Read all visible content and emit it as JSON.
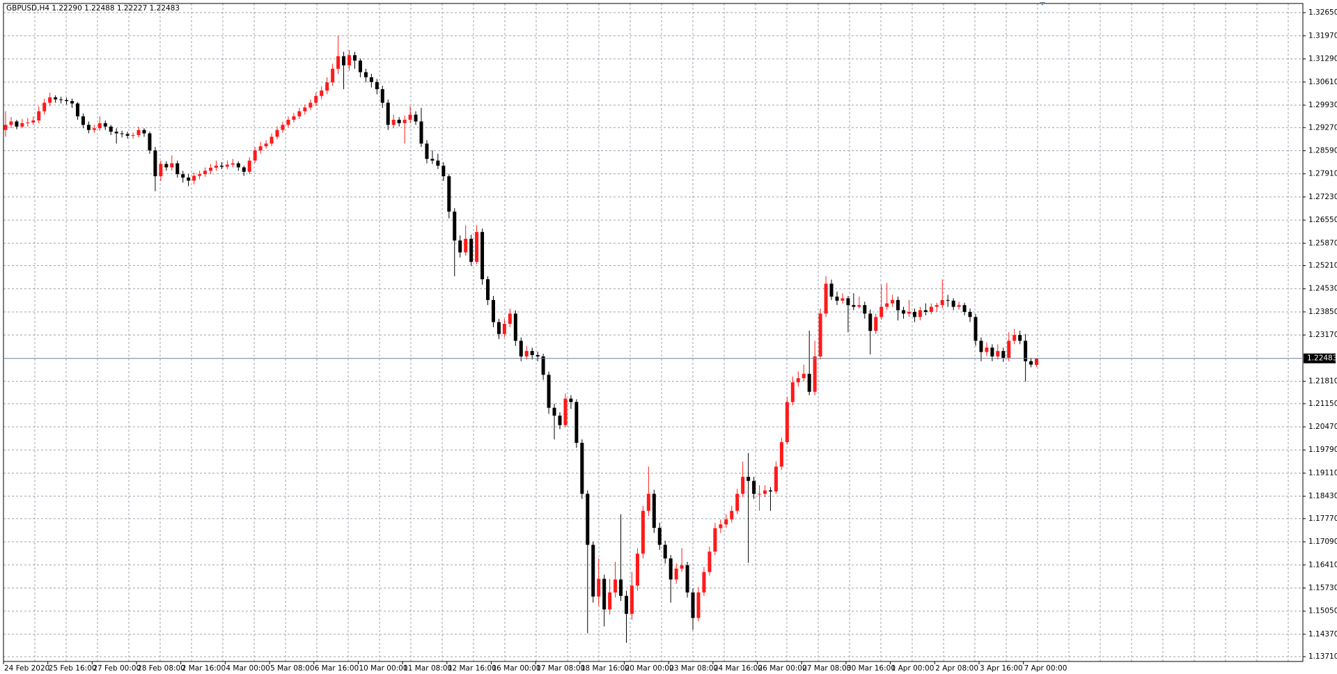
{
  "chart_data": {
    "type": "candlestick",
    "title": "GBPUSD,H4  1.22290 1.22488 1.22227 1.22483",
    "up_color": "#ff1a1a",
    "down_color": "#000000",
    "grid": true,
    "ylim": [
      1.1357,
      1.3292
    ],
    "yticks": [
      {
        "value": 1.3265,
        "label": "1.32650"
      },
      {
        "value": 1.3197,
        "label": "1.31970"
      },
      {
        "value": 1.3129,
        "label": "1.31290"
      },
      {
        "value": 1.3061,
        "label": "1.30610"
      },
      {
        "value": 1.2993,
        "label": "1.29930"
      },
      {
        "value": 1.2927,
        "label": "1.29270"
      },
      {
        "value": 1.2859,
        "label": "1.28590"
      },
      {
        "value": 1.2791,
        "label": "1.27910"
      },
      {
        "value": 1.2723,
        "label": "1.27230"
      },
      {
        "value": 1.2655,
        "label": "1.26550"
      },
      {
        "value": 1.2587,
        "label": "1.25870"
      },
      {
        "value": 1.2521,
        "label": "1.25210"
      },
      {
        "value": 1.2453,
        "label": "1.24530"
      },
      {
        "value": 1.2385,
        "label": "1.23850"
      },
      {
        "value": 1.2317,
        "label": "1.23170"
      },
      {
        "value": 1.2181,
        "label": "1.21810"
      },
      {
        "value": 1.2115,
        "label": "1.21150"
      },
      {
        "value": 1.2047,
        "label": "1.20470"
      },
      {
        "value": 1.1979,
        "label": "1.19790"
      },
      {
        "value": 1.1911,
        "label": "1.19110"
      },
      {
        "value": 1.1843,
        "label": "1.18430"
      },
      {
        "value": 1.1777,
        "label": "1.17770"
      },
      {
        "value": 1.1709,
        "label": "1.17090"
      },
      {
        "value": 1.1641,
        "label": "1.16410"
      },
      {
        "value": 1.1573,
        "label": "1.15730"
      },
      {
        "value": 1.1505,
        "label": "1.15050"
      },
      {
        "value": 1.1437,
        "label": "1.14370"
      },
      {
        "value": 1.1371,
        "label": "1.13710"
      }
    ],
    "current_price": {
      "value": 1.22483,
      "label": "1.22483"
    },
    "x_labels": [
      "24 Feb 2020",
      "25 Feb 16:00",
      "27 Feb 00:00",
      "28 Feb 08:00",
      "2 Mar 16:00",
      "4 Mar 00:00",
      "5 Mar 08:00",
      "6 Mar 16:00",
      "10 Mar 00:00",
      "11 Mar 08:00",
      "12 Mar 16:00",
      "16 Mar 00:00",
      "17 Mar 08:00",
      "18 Mar 16:00",
      "20 Mar 00:00",
      "23 Mar 08:00",
      "24 Mar 16:00",
      "26 Mar 00:00",
      "27 Mar 08:00",
      "30 Mar 16:00",
      "1 Apr 00:00",
      "2 Apr 08:00",
      "3 Apr 16:00",
      "7 Apr 00:00"
    ],
    "ohlc": [
      [
        1.292,
        1.2975,
        1.29,
        1.2935
      ],
      [
        1.2935,
        1.2958,
        1.2925,
        1.2945
      ],
      [
        1.2945,
        1.295,
        1.2922,
        1.293
      ],
      [
        1.293,
        1.2952,
        1.2925,
        1.294
      ],
      [
        1.294,
        1.2955,
        1.293,
        1.2942
      ],
      [
        1.2942,
        1.296,
        1.2935,
        1.2948
      ],
      [
        1.2948,
        1.299,
        1.294,
        1.2975
      ],
      [
        1.2975,
        1.3012,
        1.2965,
        1.3
      ],
      [
        1.3,
        1.303,
        1.299,
        1.3016
      ],
      [
        1.3016,
        1.3022,
        1.3,
        1.301
      ],
      [
        1.301,
        1.3018,
        1.2998,
        1.3008
      ],
      [
        1.3008,
        1.3015,
        1.2995,
        1.3005
      ],
      [
        1.3005,
        1.3012,
        1.2985,
        1.2998
      ],
      [
        1.2998,
        1.3002,
        1.295,
        1.296
      ],
      [
        1.296,
        1.2968,
        1.2925,
        1.2935
      ],
      [
        1.2935,
        1.2945,
        1.291,
        1.292
      ],
      [
        1.292,
        1.2935,
        1.2912,
        1.2925
      ],
      [
        1.2925,
        1.296,
        1.2918,
        1.294
      ],
      [
        1.294,
        1.2948,
        1.292,
        1.293
      ],
      [
        1.293,
        1.2935,
        1.2905,
        1.2915
      ],
      [
        1.2915,
        1.2925,
        1.288,
        1.291
      ],
      [
        1.291,
        1.2918,
        1.2898,
        1.2908
      ],
      [
        1.2908,
        1.2915,
        1.2895,
        1.2903
      ],
      [
        1.2903,
        1.2912,
        1.2895,
        1.2905
      ],
      [
        1.2905,
        1.293,
        1.2898,
        1.292
      ],
      [
        1.292,
        1.2925,
        1.29,
        1.291
      ],
      [
        1.291,
        1.2915,
        1.285,
        1.286
      ],
      [
        1.286,
        1.287,
        1.274,
        1.2784
      ],
      [
        1.2784,
        1.283,
        1.277,
        1.282
      ],
      [
        1.282,
        1.2828,
        1.28,
        1.281
      ],
      [
        1.281,
        1.2845,
        1.28,
        1.2822
      ],
      [
        1.2822,
        1.283,
        1.278,
        1.279
      ],
      [
        1.279,
        1.28,
        1.2765,
        1.278
      ],
      [
        1.278,
        1.279,
        1.2755,
        1.2771
      ],
      [
        1.2771,
        1.2795,
        1.276,
        1.2785
      ],
      [
        1.2785,
        1.28,
        1.2775,
        1.279
      ],
      [
        1.279,
        1.281,
        1.2782,
        1.28
      ],
      [
        1.28,
        1.282,
        1.279,
        1.2809
      ],
      [
        1.2809,
        1.283,
        1.28,
        1.2815
      ],
      [
        1.2815,
        1.2825,
        1.2805,
        1.2812
      ],
      [
        1.2812,
        1.283,
        1.2805,
        1.2818
      ],
      [
        1.2818,
        1.2835,
        1.281,
        1.2822
      ],
      [
        1.2822,
        1.2828,
        1.28,
        1.281
      ],
      [
        1.281,
        1.2815,
        1.2785,
        1.2797
      ],
      [
        1.2797,
        1.284,
        1.279,
        1.283
      ],
      [
        1.283,
        1.287,
        1.2822,
        1.286
      ],
      [
        1.286,
        1.2885,
        1.285,
        1.2872
      ],
      [
        1.2872,
        1.289,
        1.2865,
        1.288
      ],
      [
        1.288,
        1.291,
        1.2872,
        1.29
      ],
      [
        1.29,
        1.293,
        1.2892,
        1.292
      ],
      [
        1.292,
        1.2945,
        1.2912,
        1.2935
      ],
      [
        1.2935,
        1.296,
        1.2928,
        1.295
      ],
      [
        1.295,
        1.297,
        1.2942,
        1.296
      ],
      [
        1.296,
        1.2985,
        1.2952,
        1.2975
      ],
      [
        1.2975,
        1.2995,
        1.2965,
        1.2986
      ],
      [
        1.2986,
        1.301,
        1.2978,
        1.3
      ],
      [
        1.3,
        1.303,
        1.299,
        1.302
      ],
      [
        1.302,
        1.3048,
        1.301,
        1.3036
      ],
      [
        1.3036,
        1.3075,
        1.3025,
        1.306
      ],
      [
        1.306,
        1.3115,
        1.305,
        1.31
      ],
      [
        1.31,
        1.3197,
        1.3085,
        1.3137
      ],
      [
        1.3137,
        1.315,
        1.304,
        1.311
      ],
      [
        1.311,
        1.3155,
        1.3095,
        1.314
      ],
      [
        1.314,
        1.315,
        1.31,
        1.3124
      ],
      [
        1.3124,
        1.313,
        1.3075,
        1.309
      ],
      [
        1.309,
        1.31,
        1.306,
        1.3075
      ],
      [
        1.3075,
        1.3085,
        1.3045,
        1.3061
      ],
      [
        1.3061,
        1.307,
        1.3025,
        1.304
      ],
      [
        1.304,
        1.305,
        1.2985,
        1.3
      ],
      [
        1.3,
        1.301,
        1.292,
        1.2935
      ],
      [
        1.2935,
        1.2965,
        1.2925,
        1.295
      ],
      [
        1.295,
        1.2958,
        1.293,
        1.294
      ],
      [
        1.294,
        1.2962,
        1.288,
        1.295
      ],
      [
        1.295,
        1.299,
        1.294,
        1.2965
      ],
      [
        1.2965,
        1.2975,
        1.2935,
        1.2945
      ],
      [
        1.2945,
        1.2985,
        1.287,
        1.288
      ],
      [
        1.288,
        1.289,
        1.2822,
        1.2835
      ],
      [
        1.2835,
        1.286,
        1.282,
        1.283
      ],
      [
        1.283,
        1.285,
        1.2805,
        1.2815
      ],
      [
        1.2815,
        1.2825,
        1.277,
        1.2784
      ],
      [
        1.2784,
        1.279,
        1.266,
        1.268
      ],
      [
        1.268,
        1.269,
        1.249,
        1.2595
      ],
      [
        1.2595,
        1.261,
        1.2545,
        1.256
      ],
      [
        1.256,
        1.264,
        1.255,
        1.26
      ],
      [
        1.26,
        1.2612,
        1.252,
        1.2532
      ],
      [
        1.2532,
        1.264,
        1.2525,
        1.262
      ],
      [
        1.262,
        1.263,
        1.2465,
        1.2481
      ],
      [
        1.2481,
        1.249,
        1.2405,
        1.242
      ],
      [
        1.242,
        1.2432,
        1.234,
        1.2355
      ],
      [
        1.2355,
        1.2365,
        1.2305,
        1.232
      ],
      [
        1.232,
        1.2365,
        1.231,
        1.235
      ],
      [
        1.235,
        1.2395,
        1.234,
        1.238
      ],
      [
        1.238,
        1.239,
        1.2285,
        1.23
      ],
      [
        1.23,
        1.231,
        1.224,
        1.2254
      ],
      [
        1.2254,
        1.2285,
        1.2245,
        1.227
      ],
      [
        1.227,
        1.228,
        1.2245,
        1.2258
      ],
      [
        1.2258,
        1.2268,
        1.224,
        1.2254
      ],
      [
        1.2254,
        1.2262,
        1.2185,
        1.22
      ],
      [
        1.22,
        1.221,
        1.2085,
        1.2103
      ],
      [
        1.2103,
        1.2115,
        1.201,
        1.208
      ],
      [
        1.208,
        1.209,
        1.204,
        1.2052
      ],
      [
        1.2052,
        1.2145,
        1.2045,
        1.213
      ],
      [
        1.213,
        1.214,
        1.21,
        1.212
      ],
      [
        1.212,
        1.2128,
        1.1985,
        1.2
      ],
      [
        1.2,
        1.201,
        1.1835,
        1.185
      ],
      [
        1.185,
        1.186,
        1.144,
        1.17
      ],
      [
        1.17,
        1.171,
        1.153,
        1.1548
      ],
      [
        1.1548,
        1.166,
        1.152,
        1.16
      ],
      [
        1.16,
        1.1612,
        1.146,
        1.151
      ],
      [
        1.151,
        1.16,
        1.1495,
        1.156
      ],
      [
        1.156,
        1.165,
        1.1545,
        1.1598
      ],
      [
        1.1598,
        1.179,
        1.1535,
        1.155
      ],
      [
        1.155,
        1.1565,
        1.1412,
        1.1497
      ],
      [
        1.1497,
        1.162,
        1.148,
        1.158
      ],
      [
        1.158,
        1.169,
        1.1565,
        1.1674
      ],
      [
        1.1674,
        1.1815,
        1.166,
        1.18
      ],
      [
        1.18,
        1.193,
        1.1785,
        1.185
      ],
      [
        1.185,
        1.1862,
        1.1735,
        1.175
      ],
      [
        1.175,
        1.1765,
        1.1685,
        1.17
      ],
      [
        1.17,
        1.1712,
        1.1645,
        1.166
      ],
      [
        1.166,
        1.167,
        1.153,
        1.1598
      ],
      [
        1.1598,
        1.1645,
        1.1585,
        1.163
      ],
      [
        1.163,
        1.169,
        1.162,
        1.164
      ],
      [
        1.164,
        1.165,
        1.1545,
        1.156
      ],
      [
        1.156,
        1.1572,
        1.145,
        1.1485
      ],
      [
        1.1485,
        1.1575,
        1.1475,
        1.156
      ],
      [
        1.156,
        1.1635,
        1.155,
        1.162
      ],
      [
        1.162,
        1.1695,
        1.161,
        1.168
      ],
      [
        1.168,
        1.1765,
        1.167,
        1.1749
      ],
      [
        1.1749,
        1.1775,
        1.1735,
        1.176
      ],
      [
        1.176,
        1.179,
        1.175,
        1.1775
      ],
      [
        1.1775,
        1.1815,
        1.1765,
        1.18
      ],
      [
        1.18,
        1.1865,
        1.179,
        1.185
      ],
      [
        1.185,
        1.1945,
        1.184,
        1.19
      ],
      [
        1.19,
        1.197,
        1.1647,
        1.1888
      ],
      [
        1.1888,
        1.19,
        1.1835,
        1.185
      ],
      [
        1.185,
        1.1875,
        1.18,
        1.185
      ],
      [
        1.185,
        1.1875,
        1.184,
        1.186
      ],
      [
        1.186,
        1.187,
        1.18,
        1.1857
      ],
      [
        1.1857,
        1.1945,
        1.185,
        1.193
      ],
      [
        1.193,
        1.2015,
        1.192,
        1.2002
      ],
      [
        1.2002,
        1.2135,
        1.1995,
        1.212
      ],
      [
        1.212,
        1.2195,
        1.211,
        1.2178
      ],
      [
        1.2178,
        1.221,
        1.2165,
        1.219
      ],
      [
        1.219,
        1.223,
        1.218,
        1.2203
      ],
      [
        1.2203,
        1.233,
        1.214,
        1.215
      ],
      [
        1.215,
        1.23,
        1.214,
        1.2254
      ],
      [
        1.2254,
        1.2395,
        1.2245,
        1.238
      ],
      [
        1.238,
        1.249,
        1.237,
        1.2468
      ],
      [
        1.2468,
        1.248,
        1.242,
        1.243
      ],
      [
        1.243,
        1.2445,
        1.2405,
        1.2418
      ],
      [
        1.2418,
        1.244,
        1.241,
        1.2425
      ],
      [
        1.2425,
        1.2432,
        1.2325,
        1.2405
      ],
      [
        1.2405,
        1.244,
        1.239,
        1.24
      ],
      [
        1.24,
        1.243,
        1.2395,
        1.2405
      ],
      [
        1.2405,
        1.2415,
        1.2365,
        1.238
      ],
      [
        1.238,
        1.2392,
        1.226,
        1.2329
      ],
      [
        1.2329,
        1.238,
        1.232,
        1.237
      ],
      [
        1.237,
        1.2465,
        1.2362,
        1.24
      ],
      [
        1.24,
        1.247,
        1.239,
        1.241
      ],
      [
        1.241,
        1.2435,
        1.24,
        1.242
      ],
      [
        1.242,
        1.243,
        1.236,
        1.239
      ],
      [
        1.239,
        1.24,
        1.2365,
        1.238
      ],
      [
        1.238,
        1.242,
        1.237,
        1.2385
      ],
      [
        1.2385,
        1.2395,
        1.2355,
        1.237
      ],
      [
        1.237,
        1.24,
        1.236,
        1.239
      ],
      [
        1.239,
        1.241,
        1.2375,
        1.2385
      ],
      [
        1.2385,
        1.241,
        1.2378,
        1.24
      ],
      [
        1.24,
        1.2412,
        1.2385,
        1.2405
      ],
      [
        1.2405,
        1.248,
        1.2395,
        1.242
      ],
      [
        1.242,
        1.2435,
        1.24,
        1.2418
      ],
      [
        1.2418,
        1.2425,
        1.239,
        1.24
      ],
      [
        1.24,
        1.2415,
        1.2392,
        1.2405
      ],
      [
        1.2405,
        1.2412,
        1.2375,
        1.2385
      ],
      [
        1.2385,
        1.2395,
        1.2355,
        1.237
      ],
      [
        1.237,
        1.2378,
        1.2285,
        1.23
      ],
      [
        1.23,
        1.231,
        1.224,
        1.2267
      ],
      [
        1.2267,
        1.2295,
        1.2255,
        1.228
      ],
      [
        1.228,
        1.229,
        1.224,
        1.2254
      ],
      [
        1.2254,
        1.229,
        1.2245,
        1.227
      ],
      [
        1.227,
        1.228,
        1.2238,
        1.225
      ],
      [
        1.225,
        1.2325,
        1.224,
        1.23
      ],
      [
        1.23,
        1.2335,
        1.229,
        1.2317
      ],
      [
        1.2317,
        1.233,
        1.229,
        1.23
      ],
      [
        1.23,
        1.232,
        1.218,
        1.224
      ],
      [
        1.224,
        1.225,
        1.2222,
        1.223
      ],
      [
        1.2229,
        1.2249,
        1.2223,
        1.2248
      ]
    ]
  }
}
